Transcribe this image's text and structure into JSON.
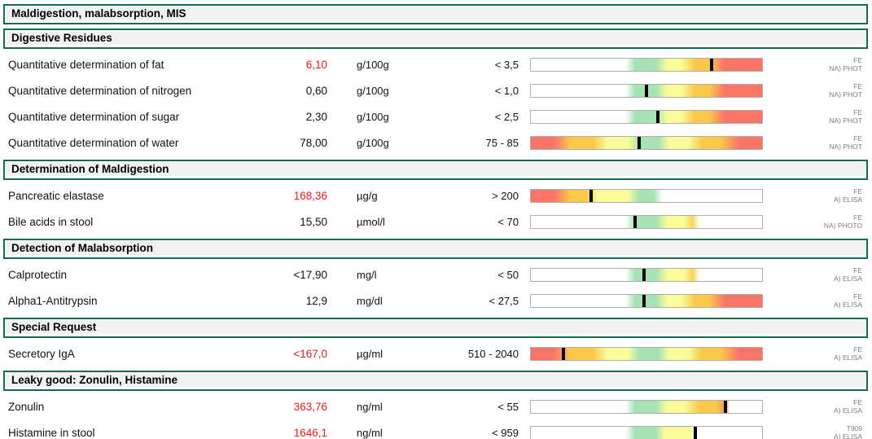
{
  "title": {
    "label": "Maldigestion, malabsorption, MIS"
  },
  "colors": {
    "accent_green": "#17694c",
    "header_bg": "#f1f1f1",
    "value_alert": "#e31e18",
    "method_text": "#7d7d7d",
    "bar_border": "#adadad",
    "marker": "#000000",
    "bar_green": "#a7e2b4",
    "bar_yellow": "#fafc9a",
    "bar_orange": "#fbc94a",
    "bar_red": "#fb7468"
  },
  "bar_presets": {
    "rise_full": [
      [
        "#ffffff",
        0
      ],
      [
        "#ffffff",
        41
      ],
      [
        "#a7e2b4",
        45
      ],
      [
        "#a7e2b4",
        54
      ],
      [
        "#fafc9a",
        59
      ],
      [
        "#fafc9a",
        65
      ],
      [
        "#fbc94a",
        71
      ],
      [
        "#fbc94a",
        77
      ],
      [
        "#fb7468",
        84
      ],
      [
        "#fb7468",
        100
      ]
    ],
    "rise_short": [
      [
        "#ffffff",
        0
      ],
      [
        "#ffffff",
        41
      ],
      [
        "#a7e2b4",
        45
      ],
      [
        "#a7e2b4",
        54
      ],
      [
        "#fafc9a",
        59
      ],
      [
        "#fafc9a",
        66
      ],
      [
        "#f8d75c",
        70
      ],
      [
        "#ffffff",
        73
      ],
      [
        "#ffffff",
        100
      ]
    ],
    "rise_orange": [
      [
        "#ffffff",
        0
      ],
      [
        "#ffffff",
        41
      ],
      [
        "#a7e2b4",
        45
      ],
      [
        "#a7e2b4",
        54
      ],
      [
        "#fafc9a",
        59
      ],
      [
        "#fafc9a",
        66
      ],
      [
        "#fbc94a",
        73
      ],
      [
        "#fbc94a",
        80
      ],
      [
        "#f89a55",
        84
      ],
      [
        "#ffffff",
        86
      ],
      [
        "#ffffff",
        100
      ]
    ],
    "rise_yellow": [
      [
        "#ffffff",
        0
      ],
      [
        "#ffffff",
        41
      ],
      [
        "#a7e2b4",
        45
      ],
      [
        "#a7e2b4",
        54
      ],
      [
        "#fafc9a",
        58
      ],
      [
        "#fafc9a",
        69
      ],
      [
        "#ffffff",
        72
      ],
      [
        "#ffffff",
        100
      ]
    ],
    "range": [
      [
        "#fb7468",
        0
      ],
      [
        "#fb7468",
        10
      ],
      [
        "#fbc94a",
        17
      ],
      [
        "#fbc94a",
        27
      ],
      [
        "#fafc9a",
        33
      ],
      [
        "#fafc9a",
        42
      ],
      [
        "#a7e2b4",
        47
      ],
      [
        "#a7e2b4",
        55
      ],
      [
        "#fafc9a",
        60
      ],
      [
        "#fafc9a",
        68
      ],
      [
        "#fbc94a",
        74
      ],
      [
        "#fbc94a",
        82
      ],
      [
        "#fb7468",
        90
      ],
      [
        "#fb7468",
        100
      ]
    ],
    "fall": [
      [
        "#fb7468",
        0
      ],
      [
        "#fb7468",
        10
      ],
      [
        "#fbc94a",
        17
      ],
      [
        "#fbc94a",
        24
      ],
      [
        "#fafc9a",
        29
      ],
      [
        "#fafc9a",
        42
      ],
      [
        "#a7e2b4",
        47
      ],
      [
        "#a7e2b4",
        53
      ],
      [
        "#ffffff",
        57
      ],
      [
        "#ffffff",
        100
      ]
    ]
  },
  "sections": [
    {
      "header": "Digestive Residues",
      "rows": [
        {
          "name": "Quantitative determination of fat",
          "value": "6,10",
          "value_alert": true,
          "unit": "g/100g",
          "reference": "< 3,5",
          "bar": {
            "preset": "rise_full",
            "marker_pct": 78
          },
          "method": [
            "FE",
            "NA) PHOT"
          ]
        },
        {
          "name": "Quantitative determination of nitrogen",
          "value": "0,60",
          "value_alert": false,
          "unit": "g/100g",
          "reference": "< 1,0",
          "bar": {
            "preset": "rise_full",
            "marker_pct": 50
          },
          "method": [
            "FE",
            "NA) PHOT"
          ]
        },
        {
          "name": "Quantitative determination of sugar",
          "value": "2,30",
          "value_alert": false,
          "unit": "g/100g",
          "reference": "< 2,5",
          "bar": {
            "preset": "rise_full",
            "marker_pct": 55
          },
          "method": [
            "FE",
            "NA) PHOT"
          ]
        },
        {
          "name": "Quantitative determination of water",
          "value": "78,00",
          "value_alert": false,
          "unit": "g/100g",
          "reference": "75 - 85",
          "bar": {
            "preset": "range",
            "marker_pct": 47
          },
          "method": [
            "FE",
            "NA) PHOT"
          ]
        }
      ]
    },
    {
      "header": "Determination of Maldigestion",
      "rows": [
        {
          "name": "Pancreatic elastase",
          "value": "168,36",
          "value_alert": true,
          "unit": "µg/g",
          "reference": "> 200",
          "bar": {
            "preset": "fall",
            "marker_pct": 26
          },
          "method": [
            "FE",
            "A) ELISA"
          ]
        },
        {
          "name": "Bile acids in stool",
          "value": "15,50",
          "value_alert": false,
          "unit": "µmol/l",
          "reference": "< 70",
          "bar": {
            "preset": "rise_short",
            "marker_pct": 45
          },
          "method": [
            "FE",
            "NA) PHOTO"
          ]
        }
      ]
    },
    {
      "header": "Detection of Malabsorption",
      "rows": [
        {
          "name": "Calprotectin",
          "value": "<17,90",
          "value_alert": false,
          "unit": "mg/l",
          "reference": "< 50",
          "bar": {
            "preset": "rise_short",
            "marker_pct": 49
          },
          "method": [
            "FE",
            "A) ELISA"
          ]
        },
        {
          "name": "Alpha1-Antitrypsin",
          "value": "12,9",
          "value_alert": false,
          "unit": "mg/dl",
          "reference": "< 27,5",
          "bar": {
            "preset": "rise_full",
            "marker_pct": 49
          },
          "method": [
            "FE",
            "A) ELISA"
          ]
        }
      ]
    },
    {
      "header": "Special Request",
      "rows": [
        {
          "name": "Secretory IgA",
          "value": "<167,0",
          "value_alert": true,
          "unit": "µg/ml",
          "reference": "510 - 2040",
          "bar": {
            "preset": "range",
            "marker_pct": 14
          },
          "method": [
            "FE",
            "A) ELISA"
          ]
        }
      ]
    },
    {
      "header": "Leaky good: Zonulin, Histamine",
      "rows": [
        {
          "name": "Zonulin",
          "value": "363,76",
          "value_alert": true,
          "unit": "ng/ml",
          "reference": "< 55",
          "bar": {
            "preset": "rise_orange",
            "marker_pct": 84
          },
          "method": [
            "FE",
            "A) ELISA"
          ]
        },
        {
          "name": "Histamine in stool",
          "value": "1646,1",
          "value_alert": true,
          "unit": "ng/ml",
          "reference": "< 959",
          "bar": {
            "preset": "rise_yellow",
            "marker_pct": 71
          },
          "method": [
            "T909",
            "A) ELISA"
          ]
        }
      ]
    }
  ]
}
